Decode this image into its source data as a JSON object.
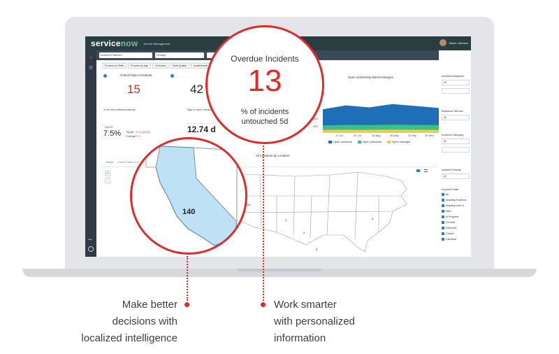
{
  "app": {
    "logo_service": "service",
    "logo_now": "now",
    "module": "Service Management",
    "user": "Shane Johnson"
  },
  "filters": {
    "incident_field": "Incident Platinum",
    "groups_field": "Groups"
  },
  "tabs": [
    "Process by State",
    "Process by Age",
    "Overview",
    "Data Quality",
    "Leaderboard"
  ],
  "kpi_critical": {
    "title": "Critical Open Incidents",
    "value": "15",
    "footnote": "% of new critical incidents",
    "date": "Oct 07",
    "pct": "7.5%",
    "target_label": "Target:",
    "target_value": "1 5 k (61%)",
    "change_label": "Change:",
    "change_value": "7 0"
  },
  "kpi_open": {
    "value": "42",
    "footnote": "Age of open incidents",
    "mean": "12.74 d"
  },
  "chart": {
    "title": "Open incidents/problems/changes",
    "y_ticks": [
      "250",
      "200"
    ],
    "x_ticks": [
      "17 Jul",
      "31 Jul",
      "14 Aug",
      "28 Aug",
      "11 Sep",
      "25 Sep"
    ],
    "legend": [
      "Open incidents",
      "Open problems",
      "Open changes"
    ],
    "colors": [
      "#1f6fb6",
      "#39c184",
      "#f2c94c"
    ]
  },
  "chart_data": {
    "type": "area",
    "title": "Open incidents/problems/changes",
    "x": [
      "17 Jul",
      "31 Jul",
      "14 Aug",
      "28 Aug",
      "11 Sep",
      "25 Sep"
    ],
    "series": [
      {
        "name": "Open incidents",
        "values": [
          175,
          205,
          190,
          215,
          200,
          185
        ]
      },
      {
        "name": "Open problems",
        "values": [
          55,
          60,
          58,
          62,
          60,
          58
        ]
      },
      {
        "name": "Open changes",
        "values": [
          22,
          24,
          23,
          25,
          24,
          23
        ]
      }
    ]
  },
  "right_panel": {
    "incident_assignment": "Incident Assignme",
    "all": "All",
    "business_service": "Business Service",
    "incident_category": "Incident Category",
    "incident_priority": "Incident Priority",
    "incident_state": "Incident State",
    "states": [
      "All",
      "Awaiting Evidence",
      "Awaiting User In",
      "New",
      "In Progress",
      "On Hold",
      "Resolved",
      "Closed",
      "Canceled"
    ]
  },
  "map": {
    "title": "All Incidents by Location",
    "crumb_world": "World",
    "crumb_region": "United States of A",
    "zoom_in": "+",
    "zoom_out": "-",
    "state_values": [
      "41",
      "4",
      "4",
      "4",
      "5"
    ]
  },
  "callout_incidents": {
    "title": "Overdue Incidents",
    "value": "13",
    "line1": "% of incidents",
    "line2": "untouched 5d"
  },
  "callout_map": {
    "value": "140"
  },
  "captions": {
    "left": [
      "Make better",
      "decisions with",
      "localized intelligence"
    ],
    "right": [
      "Work smarter",
      "with personalized",
      "information"
    ]
  }
}
